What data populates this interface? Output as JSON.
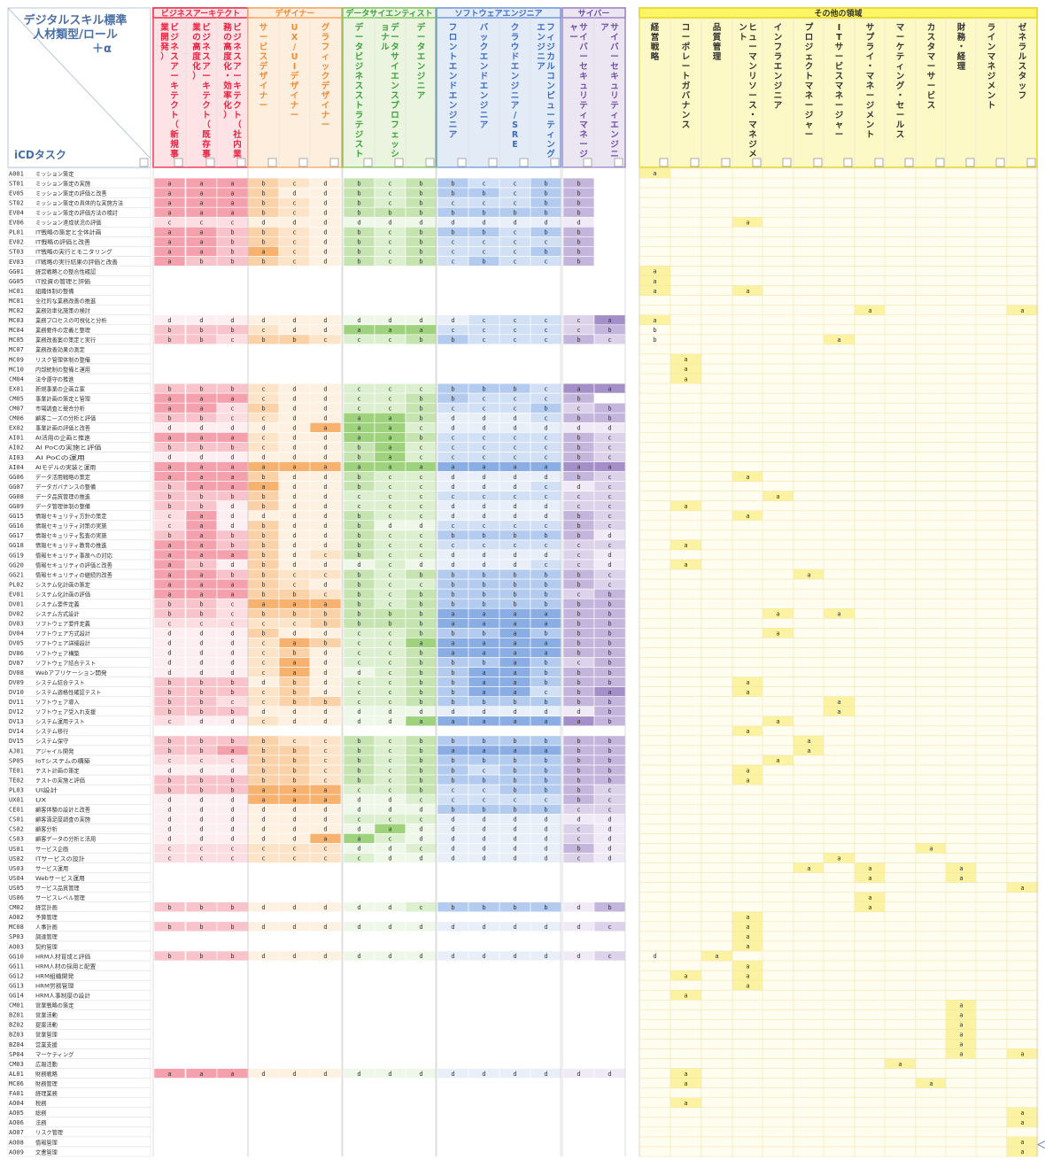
{
  "header": {
    "title_line1": "デジタルスキル標準",
    "title_line2": "人材類型/ロール",
    "title_line3": "＋α",
    "task_label": "iCDタスク",
    "side_marker": "＜"
  },
  "groups": [
    {
      "label": "ビジネスアーキテクト",
      "border": "#e8223f",
      "fill": "#fde2e6",
      "text": "#e8223f"
    },
    {
      "label": "デザイナー",
      "border": "#f5a15c",
      "fill": "#fdeede",
      "text": "#f08a33"
    },
    {
      "label": "データサイエンティスト",
      "border": "#7fc25a",
      "fill": "#eaf4df",
      "text": "#3aa23a"
    },
    {
      "label": "ソフトウェアエンジニア",
      "border": "#6e97d8",
      "fill": "#e3ebf7",
      "text": "#3b6cc4"
    },
    {
      "label": "サイバー",
      "border": "#9a7fc2",
      "fill": "#ece6f3",
      "text": "#6f4ea8"
    },
    {
      "label": "その他の領域",
      "border": "#e6d21e",
      "fill": "#fdf9c6",
      "text": "#333333"
    }
  ],
  "columns": [
    {
      "label": "ビジネスアーキテクト（新規事業開発）",
      "group": 0
    },
    {
      "label": "ビジネスアーキテクト（既存事業の高度化）",
      "group": 0
    },
    {
      "label": "ビジネスアーキテクト（社内業務の高度化・効率化）",
      "group": 0
    },
    {
      "label": "サービスデザイナー",
      "group": 1
    },
    {
      "label": "UX/UIデザイナー",
      "group": 1
    },
    {
      "label": "グラフィックデザイナー",
      "group": 1
    },
    {
      "label": "データビジネスストラテジスト",
      "group": 2
    },
    {
      "label": "データサイエンスプロフェッショナル",
      "group": 2
    },
    {
      "label": "データエンジニア",
      "group": 2
    },
    {
      "label": "フロントエンドエンジニア",
      "group": 3
    },
    {
      "label": "バックエンドエンジニア",
      "group": 3
    },
    {
      "label": "クラウドエンジニア/SRE",
      "group": 3
    },
    {
      "label": "フィジカルコンピューティングエンジニア",
      "group": 3
    },
    {
      "label": "サイバーセキュリティマネージャー",
      "group": 4
    },
    {
      "label": "サイバーセキュリティエンジニア",
      "group": 4
    },
    {
      "label": "経営戦略",
      "group": 5
    },
    {
      "label": "コーポレートガバナンス",
      "group": 5
    },
    {
      "label": "品質管理",
      "group": 5
    },
    {
      "label": "ヒューマンリソース・マネジメント",
      "group": 5
    },
    {
      "label": "インフラエンジニア",
      "group": 5
    },
    {
      "label": "プロジェクトマネージャー",
      "group": 5
    },
    {
      "label": "ITサービスマネージャー",
      "group": 5
    },
    {
      "label": "サプライ・マネージメント",
      "group": 5
    },
    {
      "label": "マーケティング・セールス",
      "group": 5
    },
    {
      "label": "カスタマーサービス",
      "group": 5
    },
    {
      "label": "財務・経理",
      "group": 5
    },
    {
      "label": "ラインマネジメント",
      "group": 5
    },
    {
      "label": "ゼネラルスタッフ",
      "group": 5
    }
  ],
  "level_colors": {
    "g0": {
      "a": "#f4a0ad",
      "b": "#f8c3cb",
      "c": "#fbdde2",
      "d": "#fdeef1"
    },
    "g1": {
      "a": "#f7b26f",
      "b": "#fbd1a7",
      "c": "#fde4c8",
      "d": "#fef1e2"
    },
    "g2": {
      "a": "#9fd27d",
      "b": "#c5e4b0",
      "c": "#dcefcf",
      "d": "#eef7e8"
    },
    "g3": {
      "a": "#8aaee3",
      "b": "#b3cbef",
      "c": "#d2e0f5",
      "d": "#e9eff9"
    },
    "g4": {
      "a": "#a58fc8",
      "b": "#c4b5dd",
      "c": "#dcd2ea",
      "d": "#efeaf5"
    },
    "g5": {
      "a": "#fbf3a2",
      "b": "#fbf3a2",
      "c": "#fbf3a2",
      "d": "#fbf3a2"
    }
  },
  "rows": [
    {
      "code": "A001",
      "name": "ミッション策定",
      "v": "...............a............"
    },
    {
      "code": "ST01",
      "name": "ミッション策定の実施",
      "v": "aaabcdbcbbccbb.............."
    },
    {
      "code": "EV05",
      "name": "ミッション策定の評価と改善",
      "v": "aaabddbcbbbcbb.............."
    },
    {
      "code": "ST02",
      "name": "ミッション策定の具体的な実施方法",
      "v": "aaabcdbcbcccbb.............."
    },
    {
      "code": "EV04",
      "name": "ミッション策定の評価方法の検討",
      "v": "aaabcdbbbbbbbb.............."
    },
    {
      "code": "EV06",
      "name": "ミッション達成状況の評価",
      "v": "cccddddddddddd....a........."
    },
    {
      "code": "PL01",
      "name": "IT戦略の策定と全体計画",
      "v": "aabbcdbcbbbcbb.............."
    },
    {
      "code": "EV02",
      "name": "IT戦略の評価と改善",
      "v": "aabbcdbcbccccb.............."
    },
    {
      "code": "ST03",
      "name": "IT戦略の実行とモニタリング",
      "v": "aabacdbcbcccbb.............."
    },
    {
      "code": "EV03",
      "name": "IT戦略の実行結果の評価と改善",
      "v": "abbbcdbcbcbccb.............."
    },
    {
      "code": "GG01",
      "name": "経営戦略との整合性確認",
      "v": "...............a............"
    },
    {
      "code": "GG05",
      "name": "IT投資の管理と評価",
      "v": "...............a............"
    },
    {
      "code": "HC01",
      "name": "組織体制の整備",
      "v": "...............a..a........."
    },
    {
      "code": "MC01",
      "name": "全社的な業務改善の推進",
      "v": ".............................."
    },
    {
      "code": "MC02",
      "name": "業務効率化施策の検討",
      "v": "......................a....a"
    },
    {
      "code": "MC03",
      "name": "業務プロセスの可視化と分析",
      "v": "ddddddddddccccaa.............."
    },
    {
      "code": "MC04",
      "name": "業務要件の定義と整理",
      "v": "bbbcddaaacccccbb.............."
    },
    {
      "code": "MC05",
      "name": "業務改善案の策定と実行",
      "v": "bbcbbcccbbcccbcb.....a........"
    },
    {
      "code": "MC07",
      "name": "業務改善効果の測定",
      "v": "..............................."
    },
    {
      "code": "MC09",
      "name": "リスク管理体制の整備",
      "v": "................a............."
    },
    {
      "code": "MC10",
      "name": "内部統制の整備と運用",
      "v": "................a............."
    },
    {
      "code": "CM04",
      "name": "法令遵守の推進",
      "v": "................a............."
    },
    {
      "code": "EX01",
      "name": "新規事業の企画立案",
      "v": "bbbcddcccbbbcaa..............."
    },
    {
      "code": "CM05",
      "name": "事業計画の策定と管理",
      "v": "aaacddccbbcccb................"
    },
    {
      "code": "CM07",
      "name": "市場調査と競合分析",
      "v": "aacbddccbcccbcb..............."
    },
    {
      "code": "CM06",
      "name": "顧客ニーズの分析と評価",
      "v": "bbccddaabdddcbb..............."
    },
    {
      "code": "EX02",
      "name": "事業計画の評価と改善",
      "v": "dddddaaacdddddd..............."
    },
    {
      "code": "AI01",
      "name": "AI活用の企画と推進",
      "v": "aaacddaabccccbc..............."
    },
    {
      "code": "AI02",
      "name": "AI PoCの実施と評価",
      "v": "bbbcddbacccccbc..............."
    },
    {
      "code": "AI03",
      "name": "AI PoCの運用",
      "v": "ddddddbacccccbc..............."
    },
    {
      "code": "AI04",
      "name": "AIモデルの実装と運用",
      "v": "aaaaaaaaaaaaaaa..............."
    },
    {
      "code": "GG06",
      "name": "データ活用戦略の策定",
      "v": "aaabddbccddddbc...a.........."
    },
    {
      "code": "GG07",
      "name": "データガバナンスの整備",
      "v": "baaaddbccdddcdc..............."
    },
    {
      "code": "GG08",
      "name": "データ品質管理の推進",
      "v": "bbbbddccccccccc....a........."
    },
    {
      "code": "GG09",
      "name": "データ管理体制の整備",
      "v": "bbdbddcccddddcc.a............"
    },
    {
      "code": "GG15",
      "name": "情報セキュリティ方針の策定",
      "v": "caddddbccddddbc...a.........."
    },
    {
      "code": "GG16",
      "name": "情報セキュリティ対策の実施",
      "v": "cadbddbddccccbc..............."
    },
    {
      "code": "GG17",
      "name": "情報セキュリティ監査の実施",
      "v": "babbddbccbbbbbd..............."
    },
    {
      "code": "GG18",
      "name": "情報セキュリティ教育の推進",
      "v": "aabbddbcccccccc.a............"
    },
    {
      "code": "GG19",
      "name": "情報セキュリティ事故への対応",
      "v": "aaabdcbccddddcd..............."
    },
    {
      "code": "GG20",
      "name": "情報セキュリティの評価と改善",
      "v": "abdbdddcddddccd.a............"
    },
    {
      "code": "GG21",
      "name": "情報セキュリティの継続的改善",
      "v": "aabbccbcbbbbbbc.....a........"
    },
    {
      "code": "PL02",
      "name": "システム化計画の策定",
      "v": "aaabcdbccbbbbbc..............."
    },
    {
      "code": "EV01",
      "name": "システム化計画の評価",
      "v": "aaabbcbcbbbbbcb..............."
    },
    {
      "code": "DV01",
      "name": "システム要件定義",
      "v": "bbcaaabcbbbbbbb..............."
    },
    {
      "code": "DV02",
      "name": "システム方式設計",
      "v": "bbcbbbbbbaaaabb....a.a......."
    },
    {
      "code": "DV03",
      "name": "ソフトウェア要件定義",
      "v": "cccccbbbbaaaabb..............."
    },
    {
      "code": "DV04",
      "name": "ソフトウェア方式設計",
      "v": "dddbddccbbbabbb....a.........."
    },
    {
      "code": "DV05",
      "name": "ソフトウェア詳細設計",
      "v": "dddcabccaaaaabb..............."
    },
    {
      "code": "DV06",
      "name": "ソフトウェア構築",
      "v": "dddcbdccbaaaabb..............."
    },
    {
      "code": "DV07",
      "name": "ソフトウェア結合テスト",
      "v": "dddcadccbbbabcb..............."
    },
    {
      "code": "DV08",
      "name": "Webアプリケーション開発",
      "v": "dddcaddcbbaabbb..............."
    },
    {
      "code": "DV09",
      "name": "システム結合テスト",
      "v": "bbbdbdccbbaabbb...a..........."
    },
    {
      "code": "DV10",
      "name": "システム適格性確認テスト",
      "v": "bbbcbdccbbaacba...a..........."
    },
    {
      "code": "DV11",
      "name": "ソフトウェア導入",
      "v": "bbccbbccbbbbbbb......a........"
    },
    {
      "code": "DV12",
      "name": "ソフトウェア受入れ支援",
      "v": "bbbdddddddddddb......a........"
    },
    {
      "code": "DV13",
      "name": "システム運用テスト",
      "v": "cddcddddaaaaaab....a.........."
    },
    {
      "code": "DV14",
      "name": "システム移行",
      "v": "..................a.........."
    },
    {
      "code": "DV15",
      "name": "システム保守",
      "v": "bbbbccbcbbbbbbb.....a........."
    },
    {
      "code": "AJ01",
      "name": "アジャイル開発",
      "v": "bbabbcbcbaaaabb.....a........."
    },
    {
      "code": "SP05",
      "name": "IoTシステムの構築",
      "v": "cccbbcbcbbbbbbb....a.........."
    },
    {
      "code": "TE01",
      "name": "テスト計画の策定",
      "v": "dddbbcbcbbcbbbb...a..........."
    },
    {
      "code": "TE02",
      "name": "テストの実施と評価",
      "v": "bbbbbcbcbbbbbbb...a..........."
    },
    {
      "code": "PL03",
      "name": "UI設計",
      "v": "bbbaaaccbccbbbc..............."
    },
    {
      "code": "UX01",
      "name": "UX",
      "v": "dddaaaddcccccbc..............."
    },
    {
      "code": "CE01",
      "name": "顧客体験の設計と改善",
      "v": "dddddddddbbbbcc..............."
    },
    {
      "code": "CS01",
      "name": "顧客満足度調査の実施",
      "v": "ddddddcccdddddd..............."
    },
    {
      "code": "CS02",
      "name": "顧客分析",
      "v": "dddddddadddddcd..............."
    },
    {
      "code": "CS03",
      "name": "顧客データの分析と活用",
      "v": "dddddaacdddddcd..............."
    },
    {
      "code": "US01",
      "name": "サービス企画",
      "v": "ccccccddcddddbd.........a....."
    },
    {
      "code": "US02",
      "name": "ITサービスの設計",
      "v": "cccccccddddddcd......a........"
    },
    {
      "code": "US03",
      "name": "サービス運用",
      "v": "....................a.a..a...."
    },
    {
      "code": "US04",
      "name": "Webサービス運用",
      "v": "......................a..a...."
    },
    {
      "code": "US05",
      "name": "サービス品質管理",
      "v": "...........................a"
    },
    {
      "code": "US06",
      "name": "サービスレベル管理",
      "v": "......................a......"
    },
    {
      "code": "CM02",
      "name": "経営計画",
      "v": "bbbdddddcbbbbdb.......a......."
    },
    {
      "code": "AO02",
      "name": "予算管理",
      "v": "..................a..........."
    },
    {
      "code": "MC08",
      "name": "人事計画",
      "v": "bbbdddddddddddc...a..........."
    },
    {
      "code": "SP03",
      "name": "調達管理",
      "v": "..................a..........."
    },
    {
      "code": "AO03",
      "name": "契約管理",
      "v": "..................a..........."
    },
    {
      "code": "GG10",
      "name": "HRM人材育成と評価",
      "v": "bbbdddddddddddcd.a............"
    },
    {
      "code": "GG11",
      "name": "HRM人材の採用と配置",
      "v": "..................a..........."
    },
    {
      "code": "GG12",
      "name": "HRM組織開発",
      "v": "................a.a..........."
    },
    {
      "code": "GG13",
      "name": "HRM労務管理",
      "v": "..................a..........."
    },
    {
      "code": "GG14",
      "name": "HRM人事制度の設計",
      "v": "................a............."
    },
    {
      "code": "CM01",
      "name": "営業戦略の策定",
      "v": ".........................a..."
    },
    {
      "code": "BZ01",
      "name": "営業活動",
      "v": ".........................a..."
    },
    {
      "code": "BZ02",
      "name": "提案活動",
      "v": ".........................a..."
    },
    {
      "code": "BZ03",
      "name": "営業管理",
      "v": ".........................a..."
    },
    {
      "code": "BZ04",
      "name": "営業支援",
      "v": ".........................a..."
    },
    {
      "code": "SP04",
      "name": "マーケティング",
      "v": ".........................a.a.."
    },
    {
      "code": "CM03",
      "name": "広報活動",
      "v": ".......................a......"
    },
    {
      "code": "AL01",
      "name": "財務戦略",
      "v": "aaadddddddddddd.a............"
    },
    {
      "code": "MC06",
      "name": "財務管理",
      "v": "................a.......a......"
    },
    {
      "code": "FA01",
      "name": "経理業務",
      "v": "............................a.."
    },
    {
      "code": "AO04",
      "name": "税務",
      "v": "................a............."
    },
    {
      "code": "AO05",
      "name": "総務",
      "v": "...........................a"
    },
    {
      "code": "AO06",
      "name": "法務",
      "v": "...........................a"
    },
    {
      "code": "AO07",
      "name": "リスク管理",
      "v": "............................a.."
    },
    {
      "code": "AO08",
      "name": "情報管理",
      "v": "...........................a"
    },
    {
      "code": "AO09",
      "name": "文書管理",
      "v": "...........................a"
    }
  ]
}
